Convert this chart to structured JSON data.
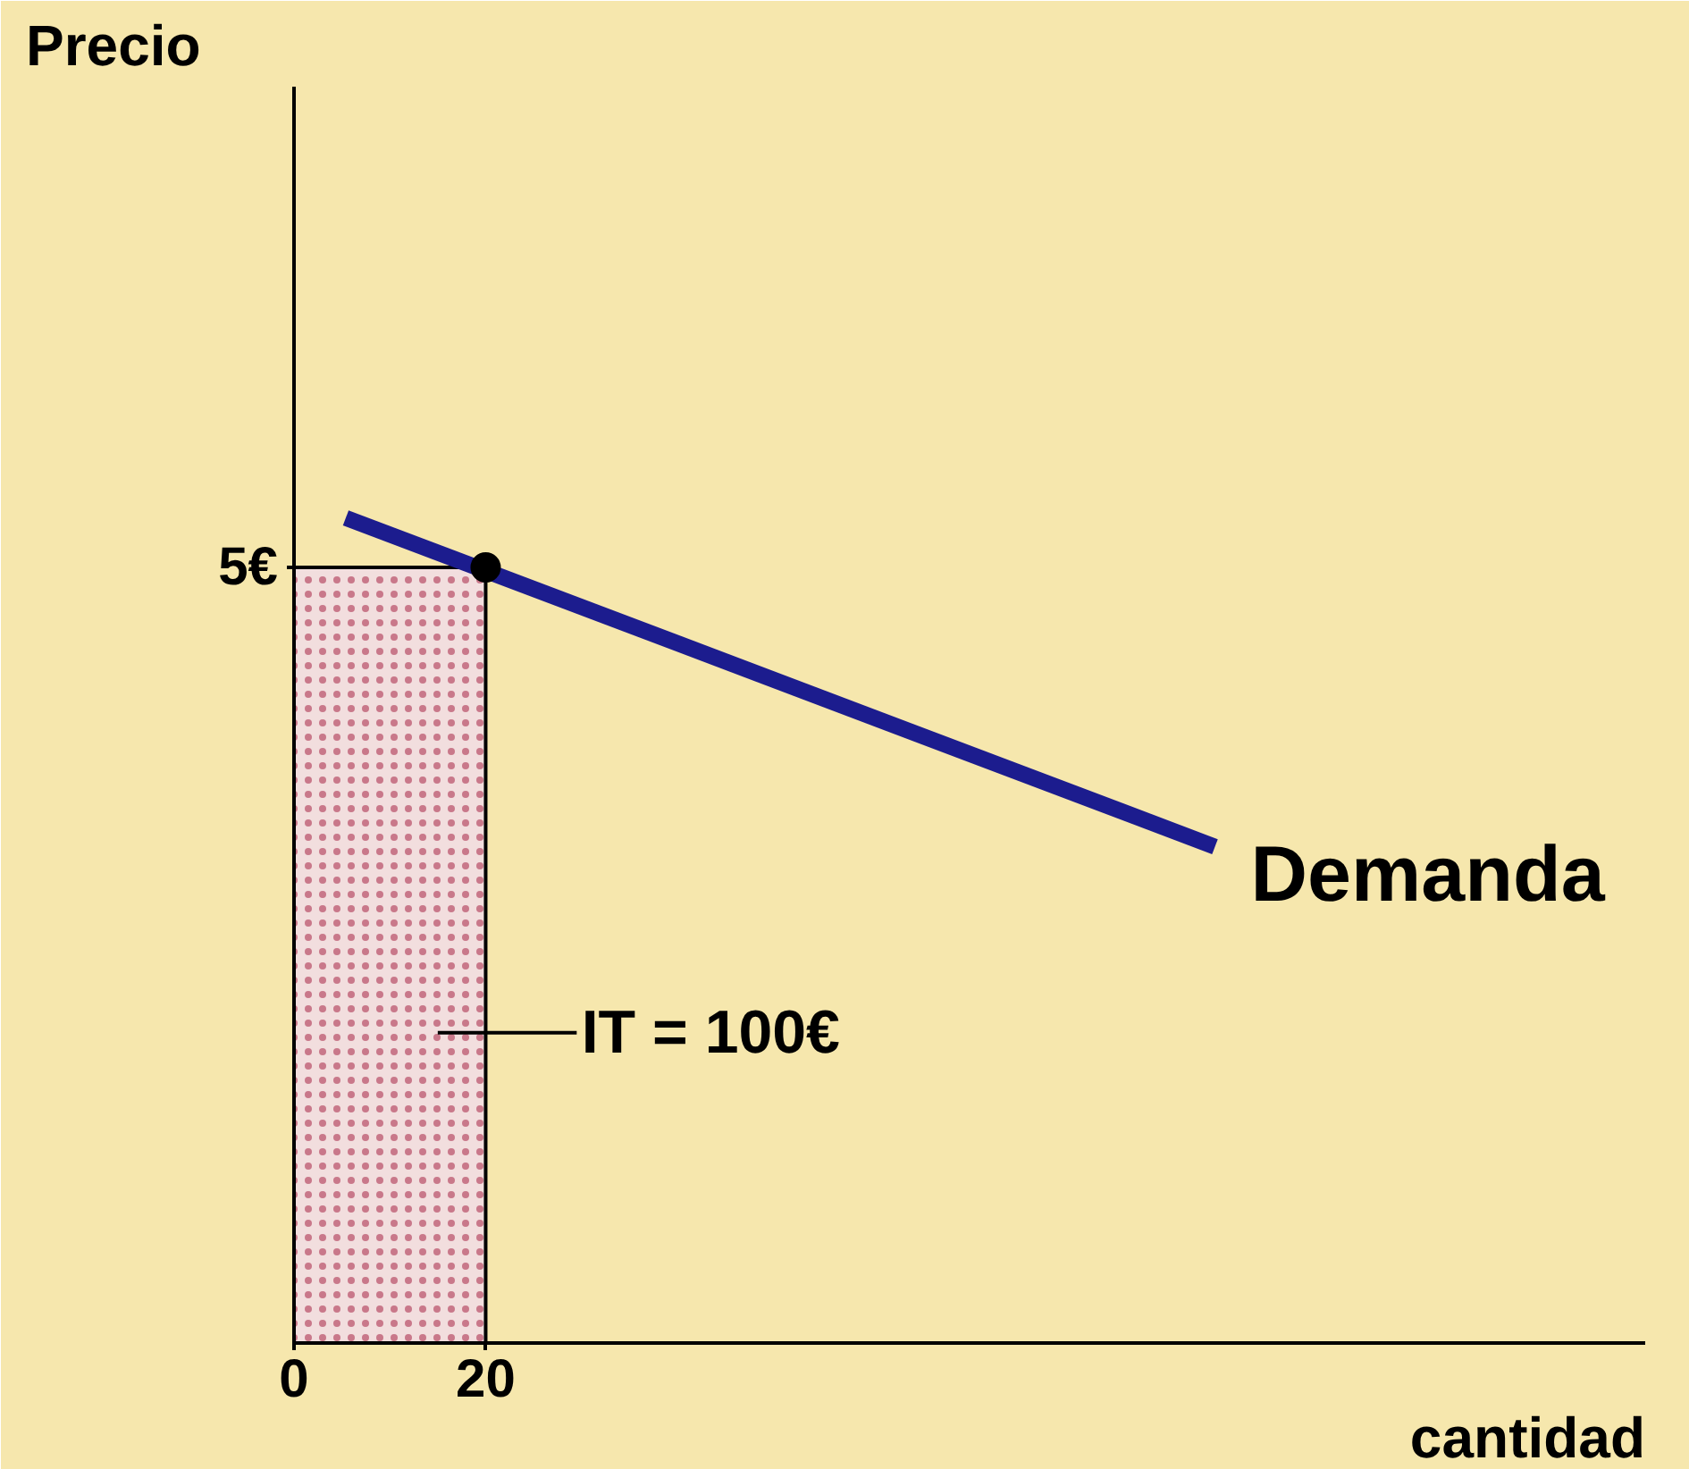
{
  "chart_data": {
    "type": "line",
    "xlabel": "cantidad",
    "ylabel": "Precio",
    "xlim": [
      0,
      141
    ],
    "ylim": [
      0,
      8.1
    ],
    "xticks": [
      0,
      20
    ],
    "yticks": [
      {
        "value": 5,
        "label": "5€"
      }
    ],
    "grid": false,
    "series": [
      {
        "type": "area",
        "color": "#f2dede",
        "x": [
          0,
          20
        ],
        "values": [
          5,
          5
        ]
      },
      {
        "name": "Demanda",
        "color": "#1c1c8e",
        "x": [
          5.4,
          96.1
        ],
        "values": [
          5.32,
          3.2
        ]
      },
      {
        "type": "scatter",
        "color": "#000000",
        "x": [
          20
        ],
        "values": [
          5
        ]
      }
    ],
    "annotations": [
      "IT = 100€"
    ]
  }
}
